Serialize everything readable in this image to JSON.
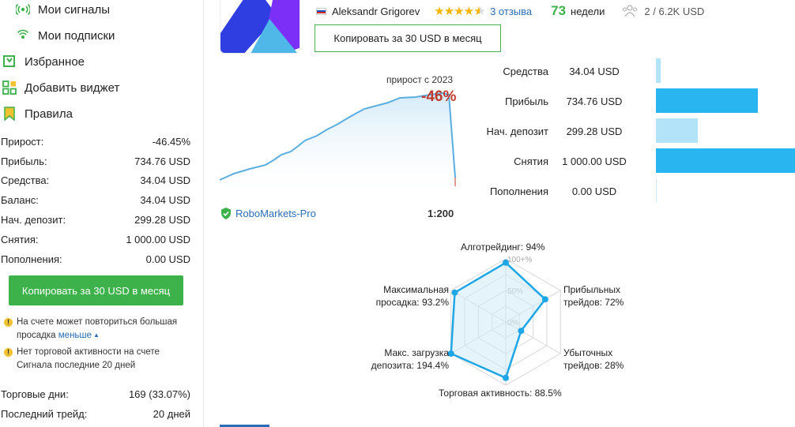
{
  "sidebar": {
    "nav": [
      {
        "label": "Мои сигналы",
        "icon": "signal-icon"
      },
      {
        "label": "Мои подписки",
        "icon": "subscriptions-icon"
      },
      {
        "label": "Избранное",
        "icon": "favorites-icon"
      },
      {
        "label": "Добавить виджет",
        "icon": "widget-icon"
      },
      {
        "label": "Правила",
        "icon": "rules-icon"
      }
    ],
    "stats": [
      {
        "label": "Прирост:",
        "value": "-46.45%"
      },
      {
        "label": "Прибыль:",
        "value": "734.76 USD"
      },
      {
        "label": "Средства:",
        "value": "34.04 USD"
      },
      {
        "label": "Баланс:",
        "value": "34.04 USD"
      },
      {
        "label": "Нач. депозит:",
        "value": "299.28 USD"
      },
      {
        "label": "Снятия:",
        "value": "1 000.00 USD"
      },
      {
        "label": "Пополнения:",
        "value": "0.00 USD"
      }
    ],
    "copy_button": "Копировать за 30 USD в месяц",
    "warnings": [
      {
        "text": "На счете может повториться большая просадка",
        "link": "меньше"
      },
      {
        "text": "Нет торговой активности на счете Сигнала последние 20 дней"
      }
    ],
    "stats2": [
      {
        "label": "Торговые дни:",
        "value": "169 (33.07%)"
      },
      {
        "label": "Последний трейд:",
        "value": "20 дней"
      }
    ]
  },
  "header": {
    "author": "Aleksandr Grigorev",
    "rating": 4.5,
    "reviews": "3 отзыва",
    "weeks_num": "73",
    "weeks_label": "недели",
    "subscribers": "2 / 6.2K USD",
    "copy_button": "Копировать за 30 USD в месяц"
  },
  "growth": {
    "label": "прирост с 2023",
    "value": "-46%",
    "broker": "RoboMarkets-Pro",
    "leverage": "1:200"
  },
  "money": [
    {
      "label": "Средства",
      "value": "34.04 USD",
      "amount": 34.04,
      "color": "#b3e3f9"
    },
    {
      "label": "Прибыль",
      "value": "734.76 USD",
      "amount": 734.76,
      "color": "#29b6f0"
    },
    {
      "label": "Нач. депозит",
      "value": "299.28 USD",
      "amount": 299.28,
      "color": "#b3e3f9"
    },
    {
      "label": "Снятия",
      "value": "1 000.00 USD",
      "amount": 1000.0,
      "color": "#29b6f0"
    },
    {
      "label": "Пополнения",
      "value": "0.00 USD",
      "amount": 0.0,
      "color": "#b3e3f9"
    }
  ],
  "radar": {
    "axes": [
      {
        "label": "Алготрейдинг: 94%",
        "value": 94
      },
      {
        "label": "Прибыльных трейдов: 72%",
        "value": 72
      },
      {
        "label": "Убыточных трейдов: 28%",
        "value": 28
      },
      {
        "label": "Торговая активность: 88.5%",
        "value": 88.5
      },
      {
        "label": "Макс. загрузка депозита: 194.4%",
        "value": 194.4
      },
      {
        "label": "Максимальная просадка: 93.2%",
        "value": 93.2
      }
    ],
    "ticks": [
      "100+%",
      "50%",
      "0%"
    ],
    "labels_text": {
      "top": "Алготрейдинг: 94%",
      "tr1": "Прибыльных",
      "tr2": "трейдов: 72%",
      "br1": "Убыточных",
      "br2": "трейдов: 28%",
      "bottom": "Торговая активность: 88.5%",
      "bl1": "Макс. загрузка",
      "bl2": "депозита: 194.4%",
      "tl1": "Максимальная",
      "tl2": "просадка: 93.2%"
    }
  },
  "colors": {
    "accent_green": "#3db14a",
    "link_blue": "#2a6db5",
    "bar_dark": "#29b6f0",
    "bar_light": "#b3e3f9",
    "loss_red": "#c0392b"
  }
}
